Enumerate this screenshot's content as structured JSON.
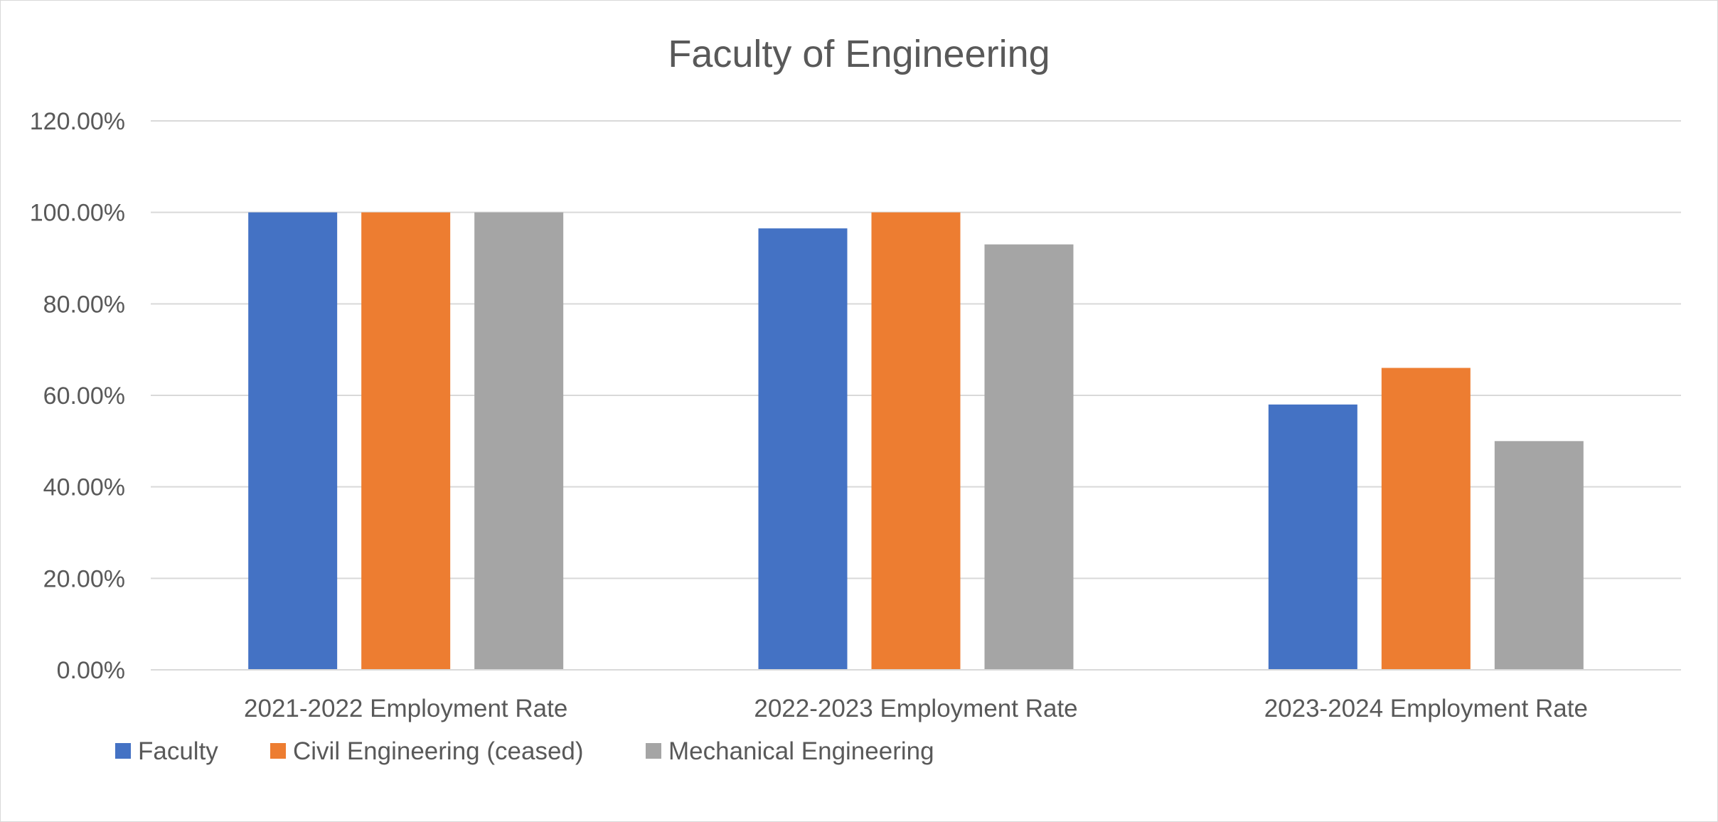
{
  "chart_data": {
    "type": "bar",
    "title": "Faculty of Engineering",
    "xlabel": "",
    "ylabel": "",
    "ylim": [
      0,
      1.2
    ],
    "y_ticks": [
      "0.00%",
      "20.00%",
      "40.00%",
      "60.00%",
      "80.00%",
      "100.00%",
      "120.00%"
    ],
    "y_tick_values": [
      0,
      0.2,
      0.4,
      0.6,
      0.8,
      1.0,
      1.2
    ],
    "categories": [
      "2021-2022 Employment Rate",
      "2022-2023 Employment Rate",
      "2023-2024 Employment Rate"
    ],
    "series": [
      {
        "name": "Faculty",
        "color": "#4472c4",
        "values": [
          1.0,
          0.965,
          0.58
        ]
      },
      {
        "name": "Civil Engineering (ceased)",
        "color": "#ed7d31",
        "values": [
          1.0,
          1.0,
          0.66
        ]
      },
      {
        "name": "Mechanical Engineering",
        "color": "#a5a5a5",
        "values": [
          1.0,
          0.93,
          0.5
        ]
      }
    ],
    "grid": true,
    "legend_position": "bottom-left"
  }
}
